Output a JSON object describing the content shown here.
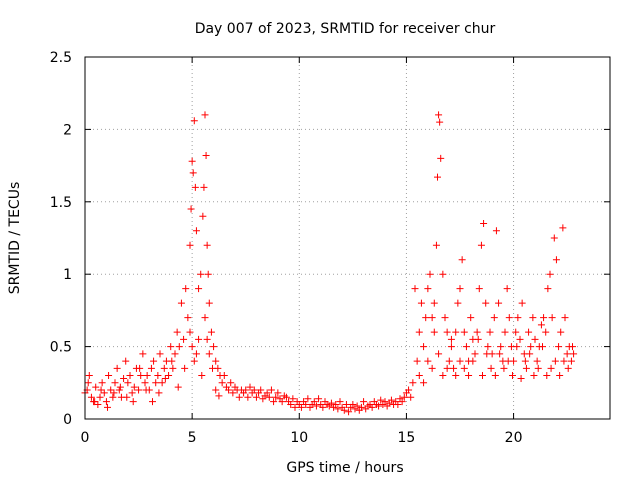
{
  "chart_data": {
    "type": "scatter",
    "title": "Day 007 of 2023, SRMTID for receiver chur",
    "xlabel": "GPS time / hours",
    "ylabel": "SRMTID / TECUs",
    "xlim": [
      0,
      24.5
    ],
    "ylim": [
      0,
      2.5
    ],
    "xticks": [
      0,
      5,
      10,
      15,
      20
    ],
    "xtick_labels": [
      "0",
      "5",
      "10",
      "15",
      "20"
    ],
    "yticks": [
      0,
      0.5,
      1,
      1.5,
      2,
      2.5
    ],
    "ytick_labels": [
      "0",
      "0.5",
      "1",
      "1.5",
      "2",
      "2.5"
    ],
    "grid": true,
    "marker": "+",
    "series": [
      {
        "name": "SRMTID",
        "color": "#ff0000",
        "x": [
          0.0,
          0.1,
          0.2,
          0.3,
          0.4,
          0.5,
          0.6,
          0.7,
          0.8,
          0.9,
          1.0,
          1.1,
          1.2,
          1.3,
          1.4,
          1.5,
          1.6,
          1.7,
          1.8,
          1.9,
          2.0,
          2.1,
          2.2,
          2.3,
          2.4,
          2.5,
          2.6,
          2.7,
          2.8,
          2.9,
          3.0,
          3.1,
          3.2,
          3.3,
          3.4,
          3.5,
          3.6,
          3.7,
          3.8,
          3.9,
          4.0,
          4.1,
          4.2,
          4.3,
          4.4,
          4.5,
          4.6,
          4.7,
          4.8,
          4.9,
          4.95,
          5.0,
          5.05,
          5.1,
          5.15,
          5.2,
          5.3,
          5.4,
          5.5,
          5.55,
          5.6,
          5.65,
          5.7,
          5.75,
          5.8,
          5.9,
          6.0,
          6.1,
          6.2,
          6.3,
          6.4,
          6.5,
          6.6,
          6.7,
          6.8,
          6.9,
          7.0,
          7.1,
          7.2,
          7.3,
          7.4,
          7.5,
          7.6,
          7.7,
          7.8,
          7.9,
          8.0,
          8.1,
          8.2,
          8.3,
          8.4,
          8.5,
          8.6,
          8.7,
          8.8,
          8.9,
          9.0,
          9.1,
          9.2,
          9.3,
          9.4,
          9.5,
          9.6,
          9.7,
          9.8,
          9.9,
          10.0,
          10.1,
          10.2,
          10.3,
          10.4,
          10.5,
          10.6,
          10.7,
          10.8,
          10.9,
          11.0,
          11.1,
          11.2,
          11.3,
          11.4,
          11.5,
          11.6,
          11.7,
          11.8,
          11.9,
          12.0,
          12.1,
          12.2,
          12.3,
          12.4,
          12.5,
          12.6,
          12.7,
          12.8,
          12.9,
          13.0,
          13.1,
          13.2,
          13.3,
          13.4,
          13.5,
          13.6,
          13.7,
          13.8,
          13.9,
          14.0,
          14.1,
          14.2,
          14.3,
          14.4,
          14.5,
          14.6,
          14.7,
          14.8,
          14.9,
          15.0,
          15.1,
          15.2,
          15.3,
          15.4,
          15.5,
          15.6,
          15.7,
          15.8,
          15.9,
          16.0,
          16.1,
          16.2,
          16.3,
          16.4,
          16.45,
          16.5,
          16.55,
          16.6,
          16.7,
          16.8,
          16.9,
          17.0,
          17.1,
          17.2,
          17.3,
          17.4,
          17.5,
          17.6,
          17.7,
          17.8,
          17.9,
          18.0,
          18.1,
          18.2,
          18.3,
          18.4,
          18.5,
          18.6,
          18.7,
          18.8,
          18.9,
          19.0,
          19.1,
          19.2,
          19.3,
          19.4,
          19.5,
          19.6,
          19.7,
          19.8,
          19.9,
          20.0,
          20.1,
          20.2,
          20.3,
          20.4,
          20.5,
          20.6,
          20.7,
          20.8,
          20.9,
          21.0,
          21.1,
          21.2,
          21.3,
          21.4,
          21.5,
          21.6,
          21.7,
          21.8,
          21.9,
          22.0,
          22.1,
          22.2,
          22.3,
          22.4,
          22.5,
          22.6,
          22.7,
          22.8,
          0.15,
          0.45,
          0.75,
          1.05,
          1.35,
          1.65,
          1.95,
          2.25,
          2.55,
          2.85,
          3.15,
          3.45,
          3.75,
          4.05,
          4.35,
          4.65,
          4.9,
          5.0,
          5.1,
          5.2,
          5.3,
          5.45,
          5.6,
          5.7,
          5.8,
          5.95,
          6.1,
          6.25,
          15.6,
          15.8,
          16.0,
          16.2,
          16.3,
          16.5,
          16.7,
          16.9,
          17.1,
          17.3,
          17.5,
          17.7,
          17.9,
          18.1,
          18.35,
          18.55,
          18.75,
          18.95,
          19.15,
          19.35,
          19.55,
          19.75,
          19.95,
          20.15,
          20.35,
          20.55,
          20.75,
          20.95,
          21.15,
          21.35,
          21.55,
          21.75,
          21.95,
          22.15,
          22.35,
          22.55,
          22.75
        ],
        "y": [
          0.18,
          0.2,
          0.3,
          0.15,
          0.12,
          0.22,
          0.1,
          0.15,
          0.25,
          0.18,
          0.12,
          0.3,
          0.2,
          0.15,
          0.25,
          0.35,
          0.2,
          0.15,
          0.28,
          0.4,
          0.25,
          0.3,
          0.18,
          0.22,
          0.35,
          0.2,
          0.3,
          0.45,
          0.25,
          0.3,
          0.2,
          0.35,
          0.4,
          0.25,
          0.3,
          0.45,
          0.25,
          0.35,
          0.4,
          0.3,
          0.5,
          0.35,
          0.45,
          0.6,
          0.5,
          0.8,
          0.55,
          0.9,
          0.7,
          1.2,
          1.45,
          1.78,
          1.7,
          2.06,
          1.6,
          1.3,
          0.9,
          1.0,
          1.4,
          1.6,
          2.1,
          1.82,
          1.2,
          1.0,
          0.8,
          0.6,
          0.5,
          0.4,
          0.35,
          0.3,
          0.25,
          0.3,
          0.22,
          0.2,
          0.25,
          0.18,
          0.22,
          0.2,
          0.15,
          0.2,
          0.18,
          0.2,
          0.15,
          0.22,
          0.18,
          0.2,
          0.15,
          0.18,
          0.2,
          0.14,
          0.16,
          0.18,
          0.15,
          0.2,
          0.12,
          0.15,
          0.18,
          0.14,
          0.12,
          0.16,
          0.15,
          0.12,
          0.1,
          0.14,
          0.08,
          0.12,
          0.1,
          0.08,
          0.12,
          0.1,
          0.14,
          0.08,
          0.1,
          0.12,
          0.09,
          0.14,
          0.1,
          0.08,
          0.12,
          0.1,
          0.09,
          0.11,
          0.08,
          0.1,
          0.07,
          0.12,
          0.08,
          0.06,
          0.1,
          0.05,
          0.08,
          0.1,
          0.07,
          0.09,
          0.06,
          0.08,
          0.12,
          0.07,
          0.09,
          0.1,
          0.08,
          0.12,
          0.1,
          0.09,
          0.13,
          0.1,
          0.12,
          0.09,
          0.11,
          0.13,
          0.1,
          0.12,
          0.1,
          0.14,
          0.12,
          0.15,
          0.18,
          0.2,
          0.15,
          0.25,
          0.9,
          0.4,
          0.6,
          0.8,
          0.5,
          0.7,
          0.9,
          1.0,
          0.7,
          0.8,
          1.2,
          1.67,
          2.1,
          2.05,
          1.8,
          1.0,
          0.7,
          0.6,
          0.4,
          0.5,
          0.35,
          0.6,
          0.8,
          0.9,
          1.1,
          0.6,
          0.5,
          0.4,
          0.7,
          0.55,
          0.45,
          0.6,
          0.9,
          1.2,
          1.35,
          0.8,
          0.5,
          0.6,
          0.45,
          0.7,
          1.3,
          0.8,
          0.5,
          0.4,
          0.6,
          0.9,
          0.7,
          0.5,
          0.4,
          0.6,
          0.7,
          0.55,
          0.8,
          0.45,
          0.35,
          0.6,
          0.5,
          0.7,
          0.55,
          0.4,
          0.5,
          0.65,
          0.7,
          0.6,
          0.9,
          1.0,
          0.7,
          1.25,
          1.1,
          0.5,
          0.6,
          1.32,
          0.7,
          0.45,
          0.5,
          0.4,
          0.45,
          0.25,
          0.12,
          0.2,
          0.08,
          0.18,
          0.22,
          0.15,
          0.12,
          0.35,
          0.2,
          0.12,
          0.18,
          0.28,
          0.4,
          0.22,
          0.35,
          0.6,
          0.5,
          0.4,
          0.45,
          0.55,
          0.3,
          0.7,
          0.55,
          0.45,
          0.35,
          0.2,
          0.16,
          0.3,
          0.25,
          0.4,
          0.35,
          0.6,
          0.45,
          0.3,
          0.35,
          0.55,
          0.3,
          0.4,
          0.35,
          0.3,
          0.4,
          0.55,
          0.3,
          0.45,
          0.35,
          0.3,
          0.45,
          0.35,
          0.4,
          0.3,
          0.5,
          0.28,
          0.4,
          0.45,
          0.3,
          0.35,
          0.5,
          0.3,
          0.35,
          0.4,
          0.3,
          0.4,
          0.35,
          0.5
        ]
      }
    ]
  }
}
